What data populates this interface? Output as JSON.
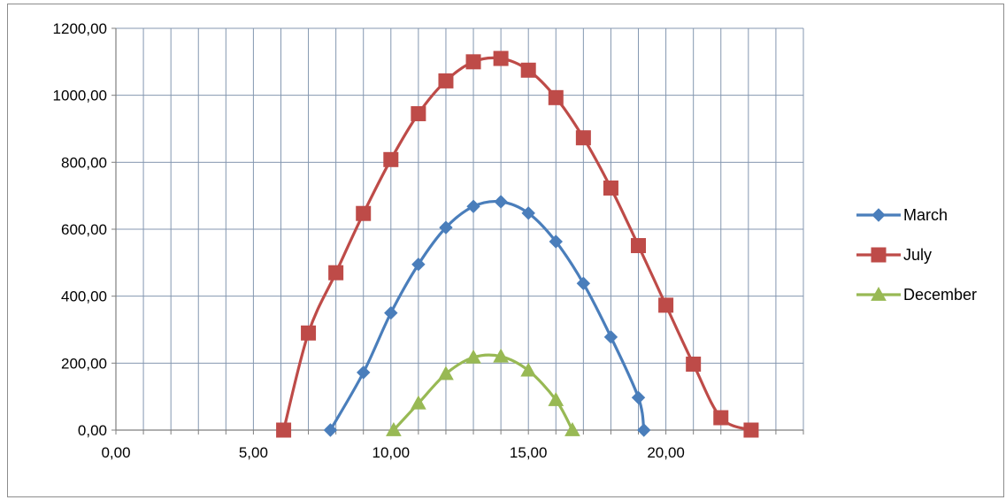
{
  "chart_data": {
    "type": "scatter",
    "title": "",
    "xlabel": "",
    "ylabel": "",
    "xlim": [
      0,
      25
    ],
    "ylim": [
      0,
      1200
    ],
    "x_ticks": [
      0,
      5,
      10,
      15,
      20
    ],
    "x_tick_labels": [
      "0,00",
      "5,00",
      "10,00",
      "15,00",
      "20,00"
    ],
    "y_ticks": [
      0,
      200,
      400,
      600,
      800,
      1000,
      1200
    ],
    "y_tick_labels": [
      "0,00",
      "200,00",
      "400,00",
      "600,00",
      "800,00",
      "1000,00",
      "1200,00"
    ],
    "x_minor_step": 1,
    "y_grid_step": 200,
    "grid": true,
    "legend_position": "right",
    "series": [
      {
        "name": "March",
        "color": "#4a7ebb",
        "marker": "diamond",
        "x": [
          7.8,
          9,
          10,
          11,
          12,
          13,
          14,
          15,
          16,
          17,
          18,
          19,
          19.2
        ],
        "y": [
          0,
          172,
          350,
          495,
          605,
          668,
          682,
          648,
          563,
          438,
          278,
          97,
          0
        ]
      },
      {
        "name": "July",
        "color": "#be4b48",
        "marker": "square",
        "x": [
          6.1,
          7,
          8,
          9,
          10,
          11,
          12,
          13,
          14,
          15,
          16,
          17,
          18,
          19,
          20,
          21,
          22,
          23.1
        ],
        "y": [
          0,
          290,
          470,
          647,
          808,
          945,
          1043,
          1100,
          1110,
          1075,
          993,
          873,
          723,
          551,
          373,
          197,
          37,
          0
        ]
      },
      {
        "name": "December",
        "color": "#98b954",
        "marker": "triangle",
        "x": [
          10.1,
          11,
          12,
          13,
          14,
          15,
          16,
          16.6
        ],
        "y": [
          0,
          80,
          168,
          217,
          220,
          178,
          90,
          0
        ]
      }
    ]
  }
}
